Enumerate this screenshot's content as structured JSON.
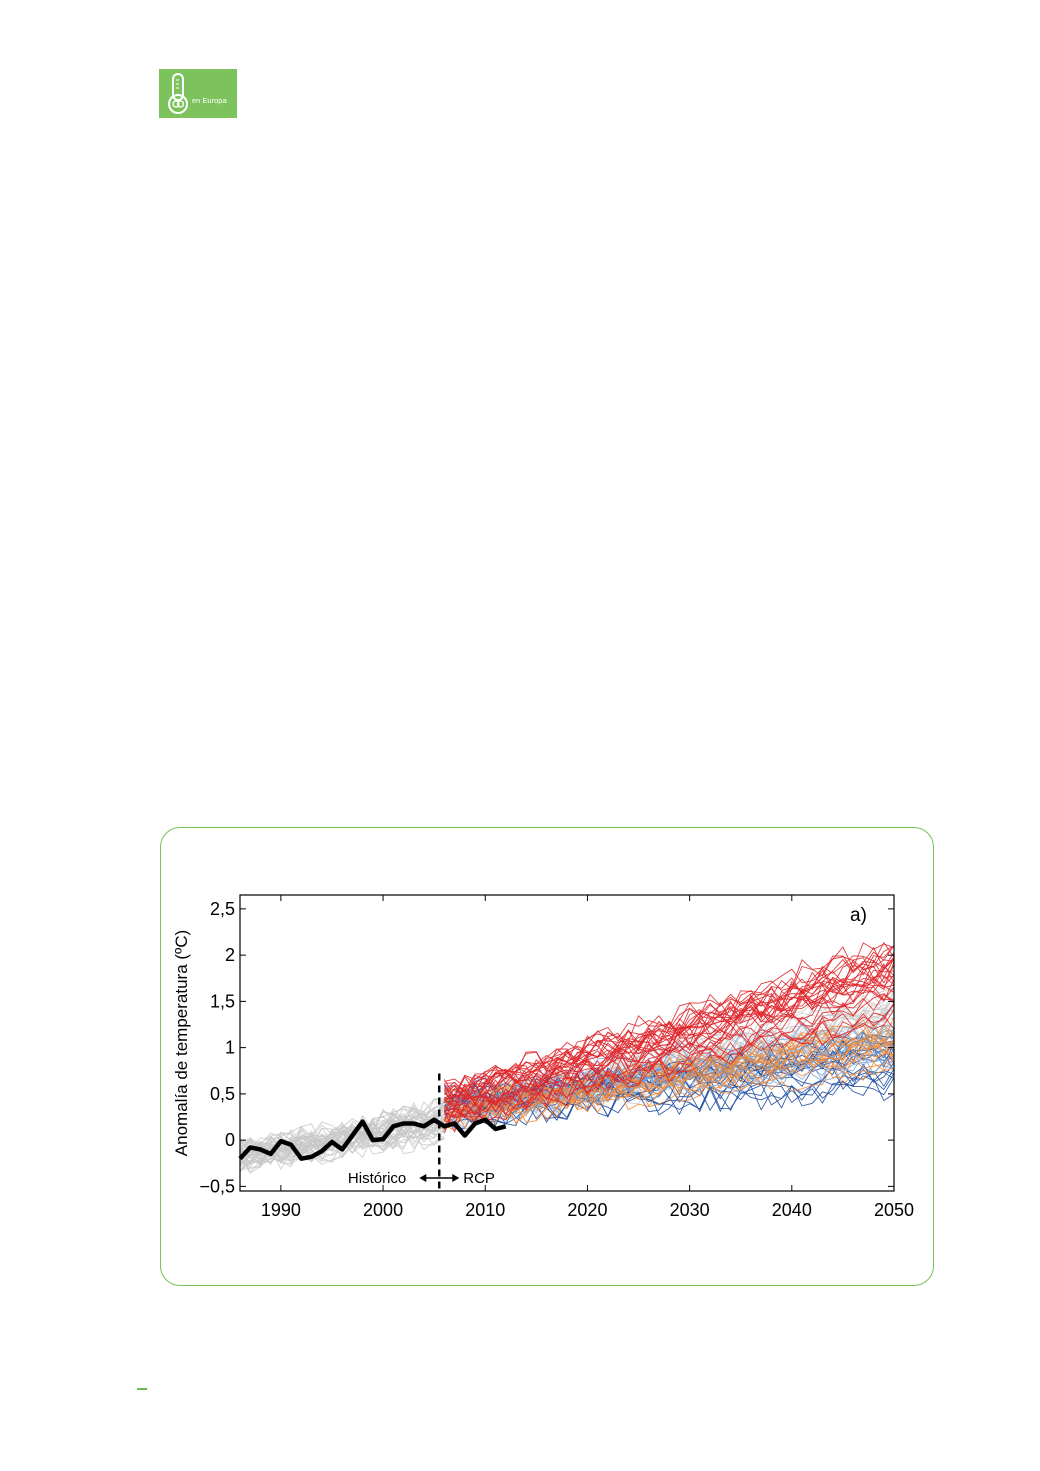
{
  "logo": {
    "text": "en Europa",
    "icon": "thermometer-co2-icon",
    "color": "#7cc35d"
  },
  "frame_color": "#76c35a",
  "chart_data": {
    "type": "line",
    "title": "",
    "panel_label": "a)",
    "xlabel": "",
    "ylabel": "Anomalía de temperatura (ºC)",
    "xlim": [
      1986,
      2050
    ],
    "ylim": [
      -0.55,
      2.65
    ],
    "x_ticks": [
      1990,
      2000,
      2010,
      2020,
      2030,
      2040,
      2050
    ],
    "x_tick_labels": [
      "1990",
      "2000",
      "2010",
      "2020",
      "2030",
      "2040",
      "2050"
    ],
    "y_ticks": [
      -0.5,
      0,
      0.5,
      1,
      1.5,
      2,
      2.5
    ],
    "y_tick_labels": [
      "−0,5",
      "0",
      "0,5",
      "1",
      "1,5",
      "2",
      "2,5"
    ],
    "grid": false,
    "divider": {
      "x": 2005.5,
      "style": "dashed"
    },
    "annotations": {
      "left": "Histórico",
      "right": "RCP"
    },
    "series": [
      {
        "role": "observed",
        "color": "#000000",
        "x": [
          1986,
          1987,
          1988,
          1989,
          1990,
          1991,
          1992,
          1993,
          1994,
          1995,
          1996,
          1997,
          1998,
          1999,
          2000,
          2001,
          2002,
          2003,
          2004,
          2005,
          2006,
          2007,
          2008,
          2009,
          2010,
          2011,
          2012
        ],
        "values": [
          -0.2,
          -0.08,
          -0.1,
          -0.15,
          -0.01,
          -0.05,
          -0.2,
          -0.18,
          -0.12,
          -0.02,
          -0.1,
          0.05,
          0.2,
          0.0,
          0.01,
          0.15,
          0.18,
          0.18,
          0.15,
          0.22,
          0.15,
          0.18,
          0.05,
          0.18,
          0.22,
          0.12,
          0.15
        ]
      }
    ],
    "ensembles": [
      {
        "role": "historical",
        "color": "#c8c8c8",
        "x_range": [
          1986,
          2006
        ],
        "start": -0.18,
        "end": 0.2,
        "spread": 0.3,
        "count": 45
      },
      {
        "role": "rcp-gray",
        "color": "#c8c8c8",
        "x_range": [
          2006,
          2050
        ],
        "start": 0.35,
        "end": 1.3,
        "spread": 0.55,
        "count": 25
      },
      {
        "role": "rcp-blue",
        "color": "#1f4ea3",
        "x_range": [
          2006,
          2050
        ],
        "start": 0.35,
        "end": 0.85,
        "spread": 0.45,
        "count": 18
      },
      {
        "role": "rcp-lightblue",
        "color": "#7aa7de",
        "x_range": [
          2006,
          2050
        ],
        "start": 0.35,
        "end": 1.05,
        "spread": 0.45,
        "count": 12
      },
      {
        "role": "rcp-orange",
        "color": "#f08a3c",
        "x_range": [
          2006,
          2050
        ],
        "start": 0.3,
        "end": 1.05,
        "spread": 0.45,
        "count": 16
      },
      {
        "role": "rcp-red",
        "color": "#e0262b",
        "x_range": [
          2006,
          2050
        ],
        "start": 0.38,
        "end": 1.75,
        "spread": 0.65,
        "count": 30
      }
    ]
  }
}
